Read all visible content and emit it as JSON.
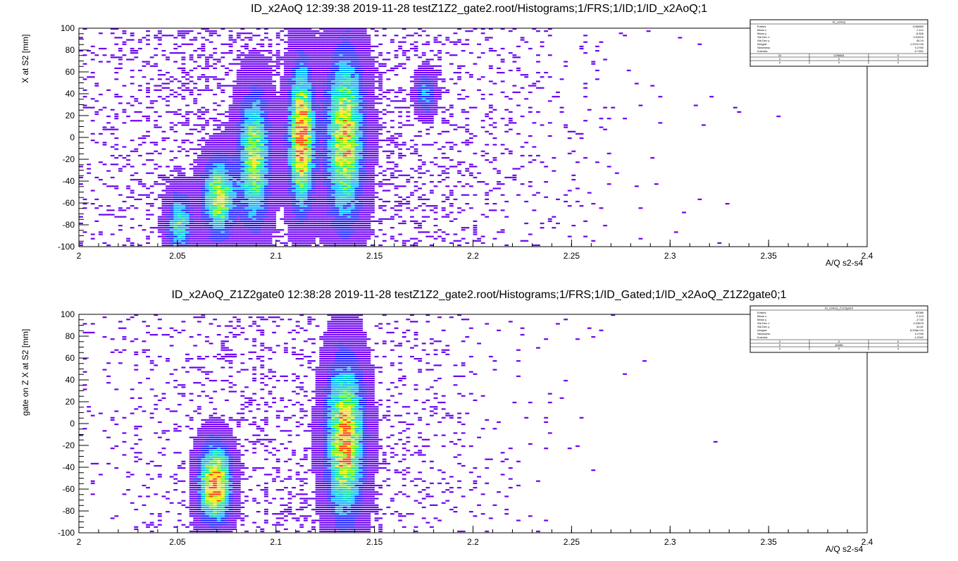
{
  "chart_data": [
    {
      "type": "heatmap",
      "title": "ID_x2AoQ  12:39:38  2019-11-28  testZ1Z2_gate2.root/Histograms;1/FRS;1/ID;1/ID_x2AoQ;1",
      "xlabel": "A/Q s2-s4",
      "ylabel": "X at S2 [mm]",
      "xlim": [
        2.0,
        2.4
      ],
      "ylim": [
        -100,
        100
      ],
      "xticks": [
        "2",
        "2.05",
        "2.1",
        "2.15",
        "2.2",
        "2.25",
        "2.3",
        "2.35",
        "2.4"
      ],
      "yticks": [
        "-100",
        "-80",
        "-60",
        "-40",
        "-20",
        "0",
        "20",
        "40",
        "60",
        "80",
        "100"
      ],
      "colormap": [
        "#6a00f0",
        "#1a1aff",
        "#00b0ff",
        "#00e0a0",
        "#70f000",
        "#f0e000",
        "#ff4000"
      ],
      "clusters": [
        {
          "aoq": 2.051,
          "y": -80,
          "sy": 18,
          "w": 0.004,
          "peak": 0.5
        },
        {
          "aoq": 2.071,
          "y": -55,
          "sy": 22,
          "w": 0.005,
          "peak": 0.75
        },
        {
          "aoq": 2.089,
          "y": -20,
          "sy": 38,
          "w": 0.005,
          "peak": 0.7
        },
        {
          "aoq": 2.113,
          "y": 0,
          "sy": 40,
          "w": 0.004,
          "peak": 1.0
        },
        {
          "aoq": 2.135,
          "y": 0,
          "sy": 50,
          "w": 0.006,
          "peak": 0.8
        },
        {
          "aoq": 2.176,
          "y": 40,
          "sy": 12,
          "w": 0.003,
          "peak": 0.35
        }
      ],
      "stats": {
        "name": "ID_x2AoQ",
        "rows": [
          [
            "Entries",
            "1296683"
          ],
          [
            "Mean x",
            "2.112"
          ],
          [
            "Mean y",
            "-6.826"
          ],
          [
            "Std Dev x",
            "0.02615"
          ],
          [
            "Std Dev y",
            "45.19"
          ],
          [
            "Integral",
            "1.297e+06"
          ],
          [
            "Skewness",
            "0.2760"
          ],
          [
            "Kurtosis",
            "-0.7451"
          ]
        ],
        "grid": [
          [
            "24",
            "1296661",
            "0"
          ],
          [
            "0",
            "0",
            "0"
          ],
          [
            "0",
            "0",
            "0"
          ]
        ]
      }
    },
    {
      "type": "heatmap",
      "title": "ID_x2AoQ_Z1Z2gate0  12:38:28  2019-11-28  testZ1Z2_gate2.root/Histograms;1/FRS;1/ID_Gated;1/ID_x2AoQ_Z1Z2gate0;1",
      "xlabel": "A/Q s2-s4",
      "ylabel": "gate on Z    X at S2 [mm]",
      "xlim": [
        2.0,
        2.4
      ],
      "ylim": [
        -100,
        100
      ],
      "xticks": [
        "2",
        "2.05",
        "2.1",
        "2.15",
        "2.2",
        "2.25",
        "2.3",
        "2.35",
        "2.4"
      ],
      "yticks": [
        "-100",
        "-80",
        "-60",
        "-40",
        "-20",
        "0",
        "20",
        "40",
        "60",
        "80",
        "100"
      ],
      "colormap": [
        "#6a00f0",
        "#1a1aff",
        "#00b0ff",
        "#00e0a0",
        "#70f000",
        "#f0e000",
        "#ff4000"
      ],
      "clusters": [
        {
          "aoq": 2.069,
          "y": -55,
          "sy": 22,
          "w": 0.005,
          "peak": 1.0
        },
        {
          "aoq": 2.135,
          "y": -15,
          "sy": 45,
          "w": 0.006,
          "peak": 0.9
        }
      ],
      "stats": {
        "name": "ID_x2AoQ_Z1Z2gate0",
        "rows": [
          [
            "Entries",
            "82086"
          ],
          [
            "Mean x",
            "2.113"
          ],
          [
            "Mean y",
            "-17.63"
          ],
          [
            "Std Dev x",
            "0.03675"
          ],
          [
            "Std Dev y",
            "44.81"
          ],
          [
            "Integral",
            "8.208e+04"
          ],
          [
            "Skewness",
            "0.2765"
          ],
          [
            "Kurtosis",
            "-1.0042"
          ]
        ],
        "grid": [
          [
            "0",
            "0",
            "0"
          ],
          [
            "0",
            "82085",
            "0"
          ],
          [
            "0",
            "0",
            "0"
          ]
        ]
      }
    }
  ]
}
